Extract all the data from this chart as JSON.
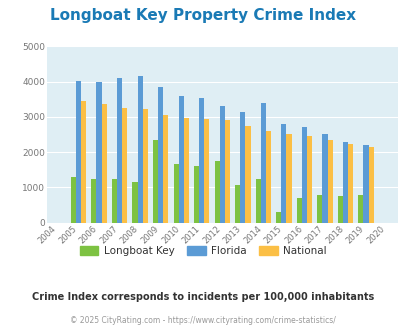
{
  "title": "Longboat Key Property Crime Index",
  "years": [
    2004,
    2005,
    2006,
    2007,
    2008,
    2009,
    2010,
    2011,
    2012,
    2013,
    2014,
    2015,
    2016,
    2017,
    2018,
    2019,
    2020
  ],
  "longboat_key": [
    0,
    1300,
    1250,
    1250,
    1150,
    2350,
    1650,
    1600,
    1750,
    1075,
    1250,
    300,
    700,
    800,
    750,
    800,
    0
  ],
  "florida": [
    0,
    4025,
    3975,
    4100,
    4150,
    3850,
    3600,
    3525,
    3300,
    3150,
    3400,
    2800,
    2700,
    2500,
    2300,
    2200,
    0
  ],
  "national": [
    0,
    3450,
    3350,
    3250,
    3225,
    3050,
    2975,
    2950,
    2900,
    2750,
    2600,
    2500,
    2450,
    2350,
    2225,
    2150,
    0
  ],
  "longboat_key_color": "#7dc242",
  "florida_color": "#5b9bd5",
  "national_color": "#fbbf45",
  "bg_color": "#dfeef4",
  "title_color": "#1a7ab5",
  "ylim": [
    0,
    5000
  ],
  "yticks": [
    0,
    1000,
    2000,
    3000,
    4000,
    5000
  ],
  "subtitle": "Crime Index corresponds to incidents per 100,000 inhabitants",
  "footer": "© 2025 CityRating.com - https://www.cityrating.com/crime-statistics/",
  "legend_labels": [
    "Longboat Key",
    "Florida",
    "National"
  ]
}
